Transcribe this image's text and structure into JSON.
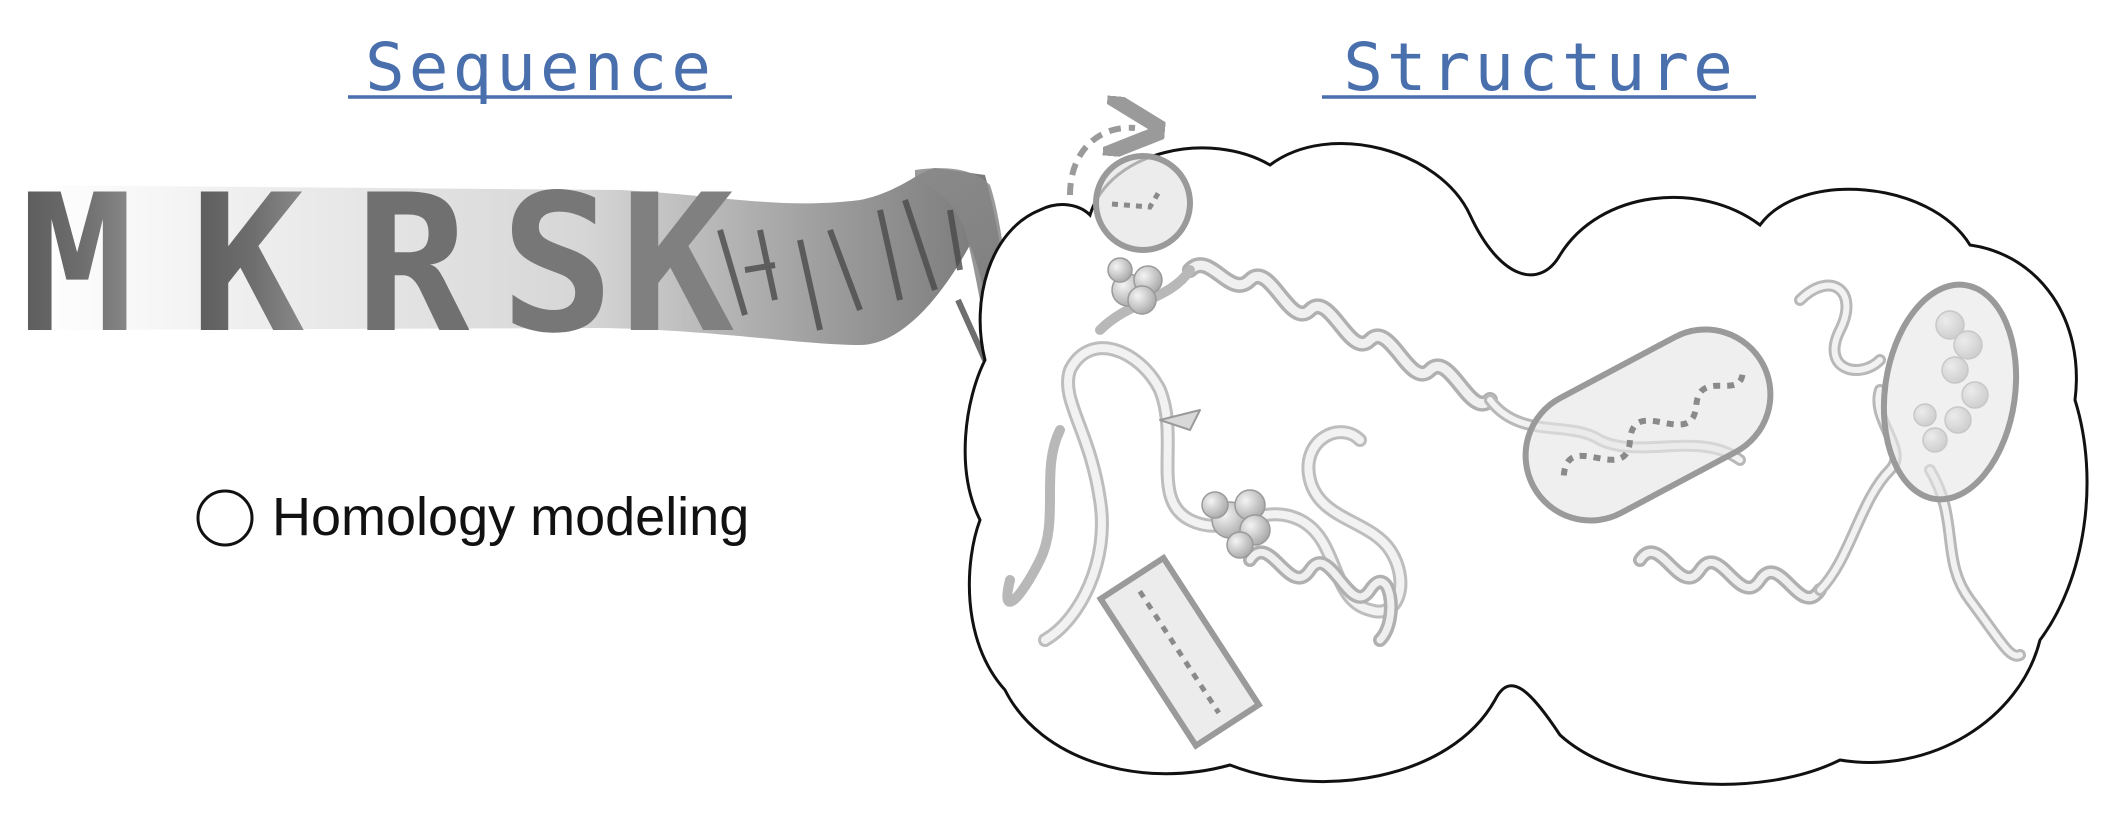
{
  "headings": {
    "sequence": "Sequence",
    "structure": "Structure"
  },
  "sequence": {
    "letters": [
      "M",
      "K",
      "R",
      "S",
      "K"
    ]
  },
  "legend": {
    "label": "Homology modeling"
  },
  "colors": {
    "heading": "#4a6fad",
    "letter": "#6a6a6a",
    "ribbon_dark": "#555555",
    "ribbon_light": "#f2f2f2",
    "outline": "#111111",
    "highlight": "#9a9a9a"
  }
}
